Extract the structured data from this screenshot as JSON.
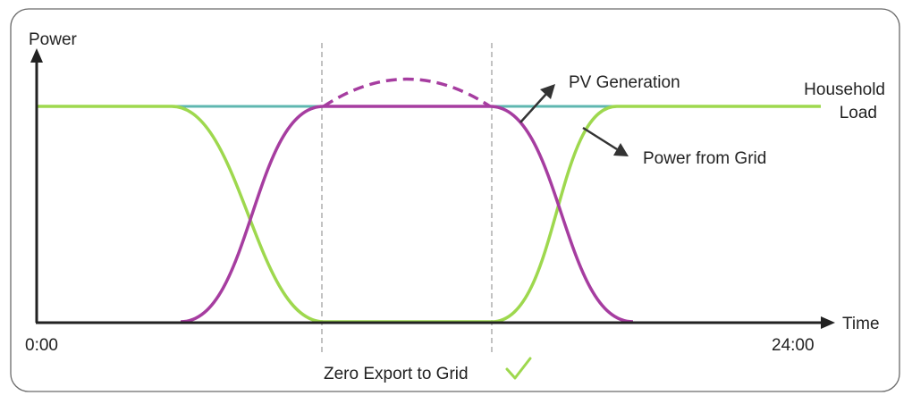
{
  "axes": {
    "y_label": "Power",
    "x_label": "Time",
    "x_start": "0:00",
    "x_end": "24:00"
  },
  "annotations": {
    "pv_generation": "PV Generation",
    "household_load_line1": "Household",
    "household_load_line2": "Load",
    "power_from_grid": "Power from Grid",
    "zero_export": "Zero Export to Grid"
  },
  "colors": {
    "household_load": "#5fb7b0",
    "grid": "#9ed84e",
    "pv": "#a63da0",
    "axis": "#222222",
    "frame": "#6a6a6a",
    "divider": "#9a9a9a",
    "check": "#9ed84e"
  },
  "icons": {
    "zero_export_check": "check-mark-icon"
  }
}
